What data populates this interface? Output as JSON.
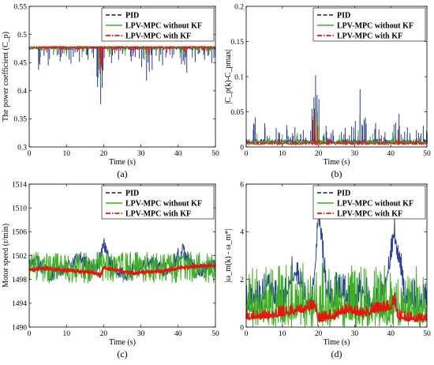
{
  "colors": {
    "pid": "#2b3d9e",
    "lpv_mpc_without_kf": "#3cb022",
    "lpv_mpc_with_kf": "#e8140f"
  },
  "legend": {
    "entries": [
      "PID",
      "LPV-MPC without KF",
      "LPV-MPC with KF"
    ],
    "placement": "top-right"
  },
  "chart_data": [
    {
      "type": "line",
      "panel": "(a)",
      "xlabel": "Time (s)",
      "ylabel": "The power coefficient (C_p)",
      "xlim": [
        0,
        50
      ],
      "ylim": [
        0.3,
        0.55
      ],
      "xticks": [
        "0",
        "10",
        "20",
        "30",
        "40",
        "50"
      ],
      "yticks": [
        "0.3",
        "0.35",
        "0.4",
        "0.45",
        "0.5",
        "0.55"
      ],
      "grid": false,
      "series": [
        {
          "name": "PID",
          "style": "dashed",
          "baseline": 0.479,
          "points": [
            [
              2.5,
              0.437
            ],
            [
              5.1,
              0.445
            ],
            [
              8.3,
              0.452
            ],
            [
              11.2,
              0.448
            ],
            [
              13.5,
              0.451
            ],
            [
              15.8,
              0.455
            ],
            [
              18.2,
              0.425
            ],
            [
              19.2,
              0.376
            ],
            [
              19.6,
              0.405
            ],
            [
              22.1,
              0.449
            ],
            [
              24.0,
              0.455
            ],
            [
              27.4,
              0.452
            ],
            [
              30.2,
              0.442
            ],
            [
              31.5,
              0.418
            ],
            [
              33.0,
              0.437
            ],
            [
              35.8,
              0.445
            ],
            [
              38.4,
              0.458
            ],
            [
              40.9,
              0.447
            ],
            [
              42.3,
              0.432
            ],
            [
              44.6,
              0.451
            ],
            [
              47.1,
              0.455
            ],
            [
              49.0,
              0.449
            ]
          ]
        },
        {
          "name": "LPV-MPC without KF",
          "style": "solid",
          "baseline": 0.479,
          "points": [
            [
              3.0,
              0.46
            ],
            [
              6.5,
              0.463
            ],
            [
              10.0,
              0.461
            ],
            [
              14.2,
              0.459
            ],
            [
              19.1,
              0.413
            ],
            [
              21.5,
              0.46
            ],
            [
              25.8,
              0.462
            ],
            [
              31.0,
              0.455
            ],
            [
              35.0,
              0.46
            ],
            [
              40.5,
              0.458
            ],
            [
              44.5,
              0.461
            ],
            [
              48.2,
              0.463
            ]
          ]
        },
        {
          "name": "LPV-MPC with KF",
          "style": "dashdot",
          "baseline": 0.479,
          "points": [
            [
              4.0,
              0.468
            ],
            [
              9.0,
              0.466
            ],
            [
              13.0,
              0.469
            ],
            [
              19.0,
              0.43
            ],
            [
              23.0,
              0.466
            ],
            [
              28.0,
              0.467
            ],
            [
              32.0,
              0.463
            ],
            [
              37.0,
              0.467
            ],
            [
              42.0,
              0.465
            ],
            [
              47.0,
              0.468
            ]
          ]
        }
      ]
    },
    {
      "type": "line",
      "panel": "(b)",
      "xlabel": "Time (s)",
      "ylabel": "|C_p(k)-C_pmax|",
      "xlim": [
        0,
        50
      ],
      "ylim": [
        0,
        0.2
      ],
      "xticks": [
        "0",
        "10",
        "20",
        "30",
        "40",
        "50"
      ],
      "yticks": [
        "0",
        "0.05",
        "0.1",
        "0.15",
        "0.2"
      ],
      "grid": false,
      "series": [
        {
          "name": "PID",
          "style": "dashed",
          "baseline": 0.005,
          "points": [
            [
              2.5,
              0.042
            ],
            [
              5.1,
              0.034
            ],
            [
              8.3,
              0.027
            ],
            [
              11.2,
              0.031
            ],
            [
              13.5,
              0.028
            ],
            [
              15.8,
              0.024
            ],
            [
              18.2,
              0.054
            ],
            [
              19.2,
              0.102
            ],
            [
              19.6,
              0.074
            ],
            [
              22.1,
              0.03
            ],
            [
              24.0,
              0.024
            ],
            [
              27.4,
              0.027
            ],
            [
              30.2,
              0.037
            ],
            [
              31.5,
              0.082
            ],
            [
              33.0,
              0.042
            ],
            [
              35.8,
              0.034
            ],
            [
              38.4,
              0.021
            ],
            [
              40.9,
              0.032
            ],
            [
              42.3,
              0.047
            ],
            [
              44.6,
              0.028
            ],
            [
              47.1,
              0.024
            ],
            [
              49.0,
              0.03
            ]
          ]
        },
        {
          "name": "LPV-MPC without KF",
          "style": "solid",
          "baseline": 0.004,
          "points": [
            [
              3.0,
              0.019
            ],
            [
              6.5,
              0.016
            ],
            [
              10.0,
              0.018
            ],
            [
              14.2,
              0.02
            ],
            [
              19.1,
              0.066
            ],
            [
              21.5,
              0.019
            ],
            [
              25.8,
              0.017
            ],
            [
              31.0,
              0.024
            ],
            [
              35.0,
              0.019
            ],
            [
              40.5,
              0.021
            ],
            [
              44.5,
              0.018
            ],
            [
              48.2,
              0.016
            ]
          ]
        },
        {
          "name": "LPV-MPC with KF",
          "style": "dashdot",
          "baseline": 0.003,
          "points": [
            [
              4.0,
              0.011
            ],
            [
              9.0,
              0.013
            ],
            [
              13.0,
              0.01
            ],
            [
              19.0,
              0.049
            ],
            [
              23.0,
              0.013
            ],
            [
              28.0,
              0.012
            ],
            [
              32.0,
              0.016
            ],
            [
              37.0,
              0.012
            ],
            [
              42.0,
              0.014
            ],
            [
              47.0,
              0.011
            ]
          ]
        }
      ]
    },
    {
      "type": "line",
      "panel": "(c)",
      "xlabel": "Time (s)",
      "ylabel": "Motor speed (r/min)",
      "xlim": [
        0,
        50
      ],
      "ylim": [
        1490,
        1514
      ],
      "xticks": [
        "0",
        "10",
        "20",
        "30",
        "40",
        "50"
      ],
      "yticks": [
        "1490",
        "1494",
        "1498",
        "1502",
        "1506",
        "1510",
        "1514"
      ],
      "grid": false,
      "series": [
        {
          "name": "PID",
          "style": "dashed",
          "points": [
            [
              0,
              1500.0
            ],
            [
              2,
              1500.8
            ],
            [
              4,
              1500.0
            ],
            [
              6,
              1498.8
            ],
            [
              8,
              1499.4
            ],
            [
              10,
              1500.2
            ],
            [
              12,
              1501.2
            ],
            [
              14,
              1501.5
            ],
            [
              16,
              1500.5
            ],
            [
              18,
              1500.0
            ],
            [
              19,
              1501.5
            ],
            [
              20,
              1503.8
            ],
            [
              21,
              1502.5
            ],
            [
              22,
              1500.5
            ],
            [
              24,
              1499.3
            ],
            [
              26,
              1499.0
            ],
            [
              28,
              1499.5
            ],
            [
              30,
              1500.3
            ],
            [
              32,
              1501.0
            ],
            [
              34,
              1500.4
            ],
            [
              36,
              1499.6
            ],
            [
              38,
              1500.2
            ],
            [
              40,
              1502.0
            ],
            [
              41,
              1503.0
            ],
            [
              42,
              1502.3
            ],
            [
              44,
              1500.2
            ],
            [
              46,
              1499.5
            ],
            [
              48,
              1500.0
            ],
            [
              50,
              1500.2
            ]
          ]
        },
        {
          "name": "LPV-MPC without KF",
          "style": "solid",
          "points": [
            [
              0,
              1500.0
            ],
            [
              5,
              1500.0
            ],
            [
              10,
              1500.0
            ],
            [
              15,
              1500.0
            ],
            [
              20,
              1500.0
            ],
            [
              25,
              1500.0
            ],
            [
              30,
              1500.0
            ],
            [
              35,
              1500.0
            ],
            [
              40,
              1500.0
            ],
            [
              45,
              1500.0
            ],
            [
              50,
              1500.0
            ]
          ],
          "band": 2.6
        },
        {
          "name": "LPV-MPC with KF",
          "style": "dashdot",
          "points": [
            [
              0,
              1499.6
            ],
            [
              4,
              1499.9
            ],
            [
              8,
              1499.6
            ],
            [
              12,
              1499.4
            ],
            [
              16,
              1499.2
            ],
            [
              18,
              1499.1
            ],
            [
              19,
              1498.6
            ],
            [
              20,
              1499.9
            ],
            [
              24,
              1499.5
            ],
            [
              28,
              1499.0
            ],
            [
              32,
              1499.3
            ],
            [
              36,
              1499.4
            ],
            [
              40,
              1499.9
            ],
            [
              44,
              1500.2
            ],
            [
              48,
              1500.3
            ],
            [
              50,
              1500.3
            ]
          ],
          "band": 0.35
        }
      ]
    },
    {
      "type": "line",
      "panel": "(d)",
      "xlabel": "Time (s)",
      "ylabel": "|ω_m(k) - ω_m*|",
      "xlim": [
        0,
        50
      ],
      "ylim": [
        0,
        6
      ],
      "xticks": [
        "0",
        "10",
        "20",
        "30",
        "40",
        "50"
      ],
      "yticks": [
        "0",
        "2",
        "4",
        "6"
      ],
      "grid": false,
      "series": [
        {
          "name": "PID",
          "style": "dashed",
          "points": [
            [
              0,
              0.5
            ],
            [
              2,
              1.0
            ],
            [
              4,
              0.6
            ],
            [
              6,
              1.4
            ],
            [
              8,
              0.8
            ],
            [
              10,
              0.5
            ],
            [
              12,
              1.6
            ],
            [
              14,
              1.9
            ],
            [
              16,
              1.0
            ],
            [
              18,
              0.6
            ],
            [
              19,
              2.2
            ],
            [
              20,
              4.3
            ],
            [
              21,
              3.2
            ],
            [
              22,
              1.2
            ],
            [
              24,
              0.8
            ],
            [
              26,
              1.2
            ],
            [
              28,
              0.7
            ],
            [
              30,
              0.6
            ],
            [
              32,
              1.2
            ],
            [
              34,
              0.6
            ],
            [
              36,
              0.7
            ],
            [
              38,
              1.0
            ],
            [
              40,
              2.6
            ],
            [
              41,
              3.6
            ],
            [
              42,
              2.7
            ],
            [
              44,
              0.8
            ],
            [
              46,
              0.7
            ],
            [
              48,
              0.6
            ],
            [
              50,
              0.8
            ]
          ],
          "spread": 1.3
        },
        {
          "name": "LPV-MPC without KF",
          "style": "solid",
          "points": [
            [
              0,
              0
            ],
            [
              50,
              0
            ]
          ],
          "spread": 3.6
        },
        {
          "name": "LPV-MPC with KF",
          "style": "dashdot",
          "points": [
            [
              0,
              0.3
            ],
            [
              4,
              0.3
            ],
            [
              8,
              0.4
            ],
            [
              12,
              0.5
            ],
            [
              16,
              0.6
            ],
            [
              19,
              0.8
            ],
            [
              20,
              0.2
            ],
            [
              24,
              0.3
            ],
            [
              28,
              0.6
            ],
            [
              32,
              0.4
            ],
            [
              36,
              0.6
            ],
            [
              40,
              0.7
            ],
            [
              41,
              1.0
            ],
            [
              42,
              0.3
            ],
            [
              46,
              0.2
            ],
            [
              50,
              0.2
            ]
          ],
          "spread": 0.45
        }
      ]
    }
  ]
}
